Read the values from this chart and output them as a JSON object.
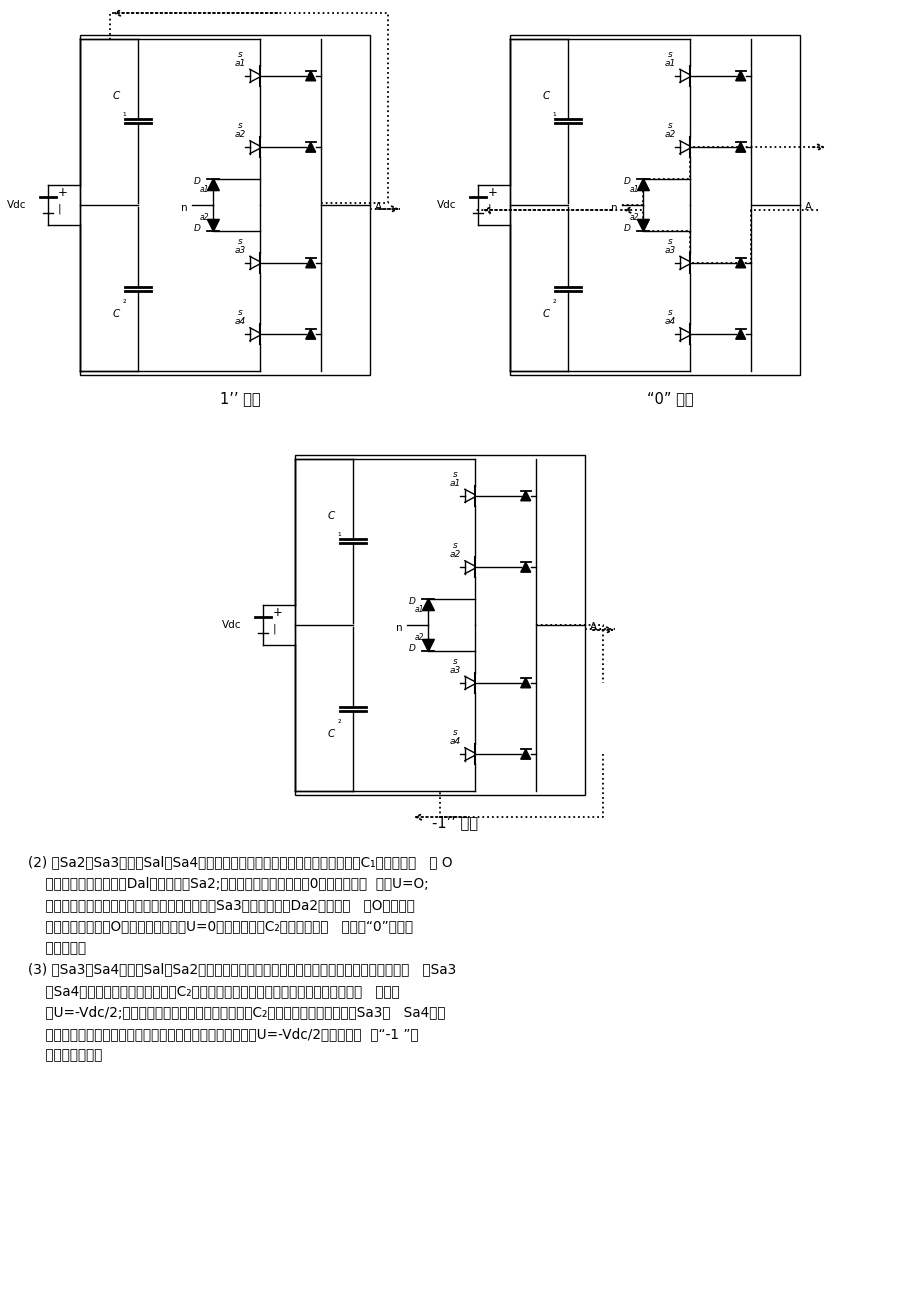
{
  "bg": "#ffffff",
  "state1_label": "1’’ 状态",
  "state0_label": "“0” 状态",
  "stateneg1_label": "-1’’ 状态",
  "text_lines": [
    "(2) 当Sa2、Sa3导通，Sal、Sa4关断时，若负载电流为正方向，则电源对电容C₁充电，电流   从 O",
    "    点顺序流过算位二极管Dal，主开关管Sa2;，该相输出端电位等同与0点电位，输出  电压U=O;",
    "    若负载电流为负方向，则电流顺序流过主开关管Sa3和算位二极管Da2，电流注   入O点，该相",
    "    输出端电位等同于O点电位，输出电压U=0，电源对电容C₂充电。即通常   标识的“0”状态，",
    "    如图所示。",
    "(3) 当Sa3、Sa4导通，Sal、Sa2关断时，若负载电流为正方向，则电流从负极点流过与主开   关Sa3",
    "    、Sa4反并联的续流二极管对电容C₂进行充电，该相输出端电位等同于负极点电位，   输出电",
    "    压U=-Vdc/2;若负载电流为负方向，则电源对电容C₂充电，电流流过主开关管Sa3、   Sa4注入",
    "    负极点，该相输出端电位仍然等同于负极点电位，输出电压U=-Vdc/2。通常标识  为“-1 ”状",
    "    态，如图所示。"
  ]
}
